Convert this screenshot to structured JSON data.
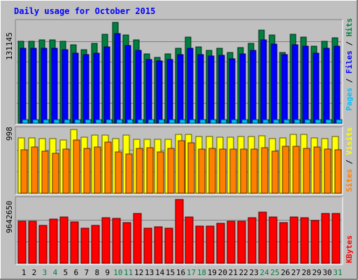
{
  "title": "Daily usage for October 2015",
  "colors": {
    "background": "#c0c0c0",
    "title": "#0000ff",
    "hits": "#008040",
    "files": "#0000ff",
    "pages": "#00c0ff",
    "visits": "#ffff00",
    "sites": "#ff8000",
    "kbytes": "#ff0000",
    "weekend_label": "#008040"
  },
  "chart_data": [
    {
      "type": "bar",
      "panel": "top",
      "categories": [
        "1",
        "2",
        "3",
        "4",
        "5",
        "6",
        "7",
        "8",
        "9",
        "10",
        "11",
        "12",
        "13",
        "14",
        "15",
        "16",
        "17",
        "18",
        "19",
        "20",
        "21",
        "22",
        "23",
        "24",
        "25",
        "26",
        "27",
        "28",
        "29",
        "30",
        "31"
      ],
      "weekend_days": [
        "3",
        "4",
        "10",
        "11",
        "17",
        "18",
        "24",
        "25",
        "31"
      ],
      "ymax_label": "131145",
      "ylim": [
        0,
        131145
      ],
      "legend": [
        "Pages",
        "Files",
        "Hits"
      ],
      "series": [
        {
          "name": "Hits",
          "values": [
            107000,
            107000,
            108000,
            108000,
            107000,
            102000,
            96000,
            104000,
            116000,
            131145,
            115000,
            108000,
            90000,
            86000,
            90000,
            97000,
            112000,
            99000,
            95000,
            97000,
            92000,
            98000,
            104000,
            121000,
            115000,
            92000,
            116000,
            112000,
            100000,
            107000,
            111000
          ]
        },
        {
          "name": "Files",
          "values": [
            97000,
            97000,
            97000,
            97000,
            96000,
            91000,
            89000,
            91000,
            99000,
            117000,
            101000,
            95000,
            83000,
            81000,
            83000,
            89000,
            97000,
            89000,
            87000,
            88000,
            84000,
            90000,
            95000,
            108000,
            103000,
            89000,
            102000,
            100000,
            91000,
            97000,
            100000
          ]
        },
        {
          "name": "Pages",
          "values": [
            5000,
            5000,
            5000,
            5000,
            5000,
            5000,
            5000,
            5000,
            5000,
            5000,
            5000,
            5000,
            5000,
            5000,
            5000,
            5000,
            5000,
            5000,
            5000,
            5000,
            5000,
            5000,
            5000,
            5000,
            5000,
            5000,
            5000,
            5000,
            5000,
            5000,
            5000
          ]
        }
      ]
    },
    {
      "type": "bar",
      "panel": "middle",
      "categories": [
        "1",
        "2",
        "3",
        "4",
        "5",
        "6",
        "7",
        "8",
        "9",
        "10",
        "11",
        "12",
        "13",
        "14",
        "15",
        "16",
        "17",
        "18",
        "19",
        "20",
        "21",
        "22",
        "23",
        "24",
        "25",
        "26",
        "27",
        "28",
        "29",
        "30",
        "31"
      ],
      "ymax_label": "998",
      "ylim": [
        0,
        998
      ],
      "legend": [
        "Sites",
        "Visits"
      ],
      "series": [
        {
          "name": "Visits",
          "values": [
            863,
            863,
            856,
            856,
            830,
            998,
            879,
            908,
            905,
            851,
            908,
            849,
            842,
            849,
            849,
            924,
            924,
            884,
            884,
            880,
            879,
            884,
            884,
            903,
            851,
            864,
            924,
            924,
            864,
            856,
            886
          ]
        },
        {
          "name": "Sites",
          "values": [
            680,
            720,
            660,
            620,
            690,
            830,
            700,
            720,
            800,
            650,
            610,
            700,
            710,
            650,
            700,
            820,
            790,
            690,
            700,
            690,
            690,
            690,
            690,
            710,
            660,
            730,
            740,
            700,
            720,
            690,
            680
          ]
        }
      ]
    },
    {
      "type": "bar",
      "panel": "bottom",
      "categories": [
        "1",
        "2",
        "3",
        "4",
        "5",
        "6",
        "7",
        "8",
        "9",
        "10",
        "11",
        "12",
        "13",
        "14",
        "15",
        "16",
        "17",
        "18",
        "19",
        "20",
        "21",
        "22",
        "23",
        "24",
        "25",
        "26",
        "27",
        "28",
        "29",
        "30",
        "31"
      ],
      "ymax_label": "9642650",
      "ylim": [
        0,
        9642650
      ],
      "legend": [
        "KBytes"
      ],
      "series": [
        {
          "name": "KBytes",
          "values": [
            6350000,
            6350000,
            5750000,
            6650000,
            6950000,
            6300000,
            5350000,
            5750000,
            6850000,
            6750000,
            6100000,
            7550000,
            5350000,
            5550000,
            5350000,
            9642650,
            6950000,
            5650000,
            5650000,
            6050000,
            6350000,
            6350000,
            6850000,
            7750000,
            6950000,
            6150000,
            6950000,
            6850000,
            6450000,
            7550000,
            7550000
          ]
        }
      ]
    }
  ]
}
